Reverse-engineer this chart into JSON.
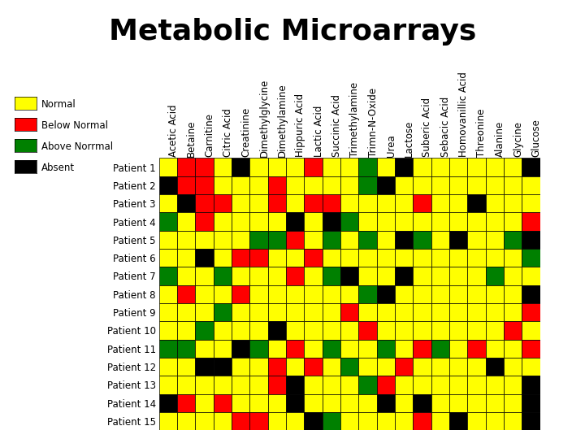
{
  "title": "Metabolic Microarrays",
  "columns": [
    "Acetic Acid",
    "Betaine",
    "Carnitine",
    "Citric Acid",
    "Creatinine",
    "Dimethylglycine",
    "Dimethylamine",
    "Hippuric Acid",
    "Lactic Acid",
    "Succinic Acid",
    "Trimethylamine",
    "Trimn-N-Oxide",
    "Urea",
    "Lactose",
    "Suberic Acid",
    "Sebacic Acid",
    "Homovanillic Acid",
    "Threonine",
    "Alanine",
    "Glycine",
    "Glucose"
  ],
  "rows": [
    "Patient 1",
    "Patient 2",
    "Patient 3",
    "Patient 4",
    "Patient 5",
    "Patient 6",
    "Patient 7",
    "Patient 8",
    "Patient 9",
    "Patient 10",
    "Patient 11",
    "Patient 12",
    "Patient 13",
    "Patient 14",
    "Patient 15"
  ],
  "colors": {
    "Y": "#FFFF00",
    "R": "#FF0000",
    "G": "#008000",
    "K": "#000000"
  },
  "legend": {
    "Normal": "#FFFF00",
    "Below Normal": "#FF0000",
    "Above Norrmal": "#008000",
    "Absent": "#000000"
  },
  "grid": [
    [
      "Y",
      "R",
      "R",
      "Y",
      "K",
      "Y",
      "Y",
      "Y",
      "R",
      "Y",
      "Y",
      "G",
      "Y",
      "K",
      "Y",
      "Y",
      "Y",
      "Y",
      "Y",
      "Y",
      "K"
    ],
    [
      "K",
      "R",
      "R",
      "Y",
      "Y",
      "Y",
      "R",
      "Y",
      "Y",
      "Y",
      "Y",
      "G",
      "K",
      "Y",
      "Y",
      "Y",
      "Y",
      "Y",
      "Y",
      "Y",
      "Y"
    ],
    [
      "Y",
      "K",
      "R",
      "R",
      "Y",
      "Y",
      "R",
      "Y",
      "R",
      "R",
      "Y",
      "Y",
      "Y",
      "Y",
      "R",
      "Y",
      "Y",
      "K",
      "Y",
      "Y",
      "Y"
    ],
    [
      "G",
      "Y",
      "R",
      "Y",
      "Y",
      "Y",
      "Y",
      "K",
      "Y",
      "K",
      "G",
      "Y",
      "Y",
      "Y",
      "Y",
      "Y",
      "Y",
      "Y",
      "Y",
      "Y",
      "R"
    ],
    [
      "Y",
      "Y",
      "Y",
      "Y",
      "Y",
      "G",
      "G",
      "R",
      "Y",
      "G",
      "Y",
      "G",
      "Y",
      "K",
      "G",
      "Y",
      "K",
      "Y",
      "Y",
      "G",
      "K"
    ],
    [
      "Y",
      "Y",
      "K",
      "Y",
      "R",
      "R",
      "Y",
      "Y",
      "R",
      "Y",
      "Y",
      "Y",
      "Y",
      "Y",
      "Y",
      "Y",
      "Y",
      "Y",
      "Y",
      "Y",
      "G"
    ],
    [
      "G",
      "Y",
      "Y",
      "G",
      "Y",
      "Y",
      "Y",
      "R",
      "Y",
      "G",
      "K",
      "Y",
      "Y",
      "K",
      "Y",
      "Y",
      "Y",
      "Y",
      "G",
      "Y",
      "Y"
    ],
    [
      "Y",
      "R",
      "Y",
      "Y",
      "R",
      "Y",
      "Y",
      "Y",
      "Y",
      "Y",
      "Y",
      "G",
      "K",
      "Y",
      "Y",
      "Y",
      "Y",
      "Y",
      "Y",
      "Y",
      "K"
    ],
    [
      "Y",
      "Y",
      "Y",
      "G",
      "Y",
      "Y",
      "Y",
      "Y",
      "Y",
      "Y",
      "R",
      "Y",
      "Y",
      "Y",
      "Y",
      "Y",
      "Y",
      "Y",
      "Y",
      "Y",
      "R"
    ],
    [
      "Y",
      "Y",
      "G",
      "Y",
      "Y",
      "Y",
      "K",
      "Y",
      "Y",
      "Y",
      "Y",
      "R",
      "Y",
      "Y",
      "Y",
      "Y",
      "Y",
      "Y",
      "Y",
      "R",
      "Y"
    ],
    [
      "G",
      "G",
      "Y",
      "Y",
      "K",
      "G",
      "Y",
      "R",
      "Y",
      "G",
      "Y",
      "Y",
      "G",
      "Y",
      "R",
      "G",
      "Y",
      "R",
      "Y",
      "Y",
      "R"
    ],
    [
      "Y",
      "Y",
      "K",
      "K",
      "Y",
      "Y",
      "R",
      "Y",
      "R",
      "Y",
      "G",
      "Y",
      "Y",
      "R",
      "Y",
      "Y",
      "Y",
      "Y",
      "K",
      "Y",
      "Y"
    ],
    [
      "Y",
      "Y",
      "Y",
      "Y",
      "Y",
      "Y",
      "R",
      "K",
      "Y",
      "Y",
      "Y",
      "G",
      "R",
      "Y",
      "Y",
      "Y",
      "Y",
      "Y",
      "Y",
      "Y",
      "K"
    ],
    [
      "K",
      "R",
      "Y",
      "R",
      "Y",
      "Y",
      "Y",
      "K",
      "Y",
      "Y",
      "Y",
      "Y",
      "K",
      "Y",
      "K",
      "Y",
      "Y",
      "Y",
      "Y",
      "Y",
      "K"
    ],
    [
      "Y",
      "Y",
      "Y",
      "Y",
      "R",
      "R",
      "Y",
      "Y",
      "K",
      "G",
      "Y",
      "Y",
      "Y",
      "Y",
      "R",
      "Y",
      "K",
      "Y",
      "Y",
      "Y",
      "K"
    ]
  ],
  "background": "#FFFFFF",
  "title_fontsize": 26,
  "label_fontsize": 8.5
}
